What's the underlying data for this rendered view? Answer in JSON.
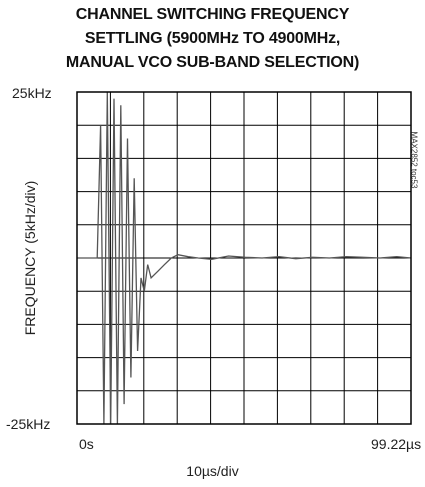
{
  "chart_data": {
    "type": "line",
    "title_lines": [
      "CHANNEL SWITCHING FREQUENCY",
      "SETTLING (5900MHz TO 4900MHz,",
      "MANUAL VCO SUB-BAND SELECTION)"
    ],
    "ylabel": "FREQUENCY (5kHz/div)",
    "xlabel": "10µs/div",
    "y_top_label": "25kHz",
    "y_bottom_label": "-25kHz",
    "x_left_label": "0s",
    "x_right_label": "99.22µs",
    "part_stamp": "MAX2852 toc53",
    "xlim": [
      0,
      99.22
    ],
    "ylim": [
      -25,
      25
    ],
    "x_unit": "µs",
    "y_unit": "kHz",
    "divisions": {
      "x": 10,
      "y": 10
    },
    "grid": true,
    "trace_color": "#555555",
    "series": [
      {
        "x": [
          0,
          2,
          4,
          6,
          7,
          8,
          9,
          10,
          11,
          12,
          13,
          14,
          15,
          16,
          17,
          18,
          19,
          20,
          21,
          22,
          24,
          26,
          28,
          30,
          33,
          36,
          40,
          45,
          50,
          55,
          60,
          65,
          70,
          75,
          80,
          85,
          90,
          95,
          99.22
        ],
        "values": [
          0,
          0,
          0,
          0,
          20,
          -25,
          25,
          -25,
          24,
          -25,
          23,
          -22,
          18,
          -18,
          12,
          -14,
          -3,
          -5,
          -1,
          -3,
          -2,
          -1,
          0,
          0.5,
          0.2,
          0,
          -0.2,
          0.3,
          0.1,
          0,
          0.2,
          -0.1,
          0.1,
          0,
          0.2,
          0.1,
          0,
          0.2,
          0
        ]
      }
    ]
  }
}
